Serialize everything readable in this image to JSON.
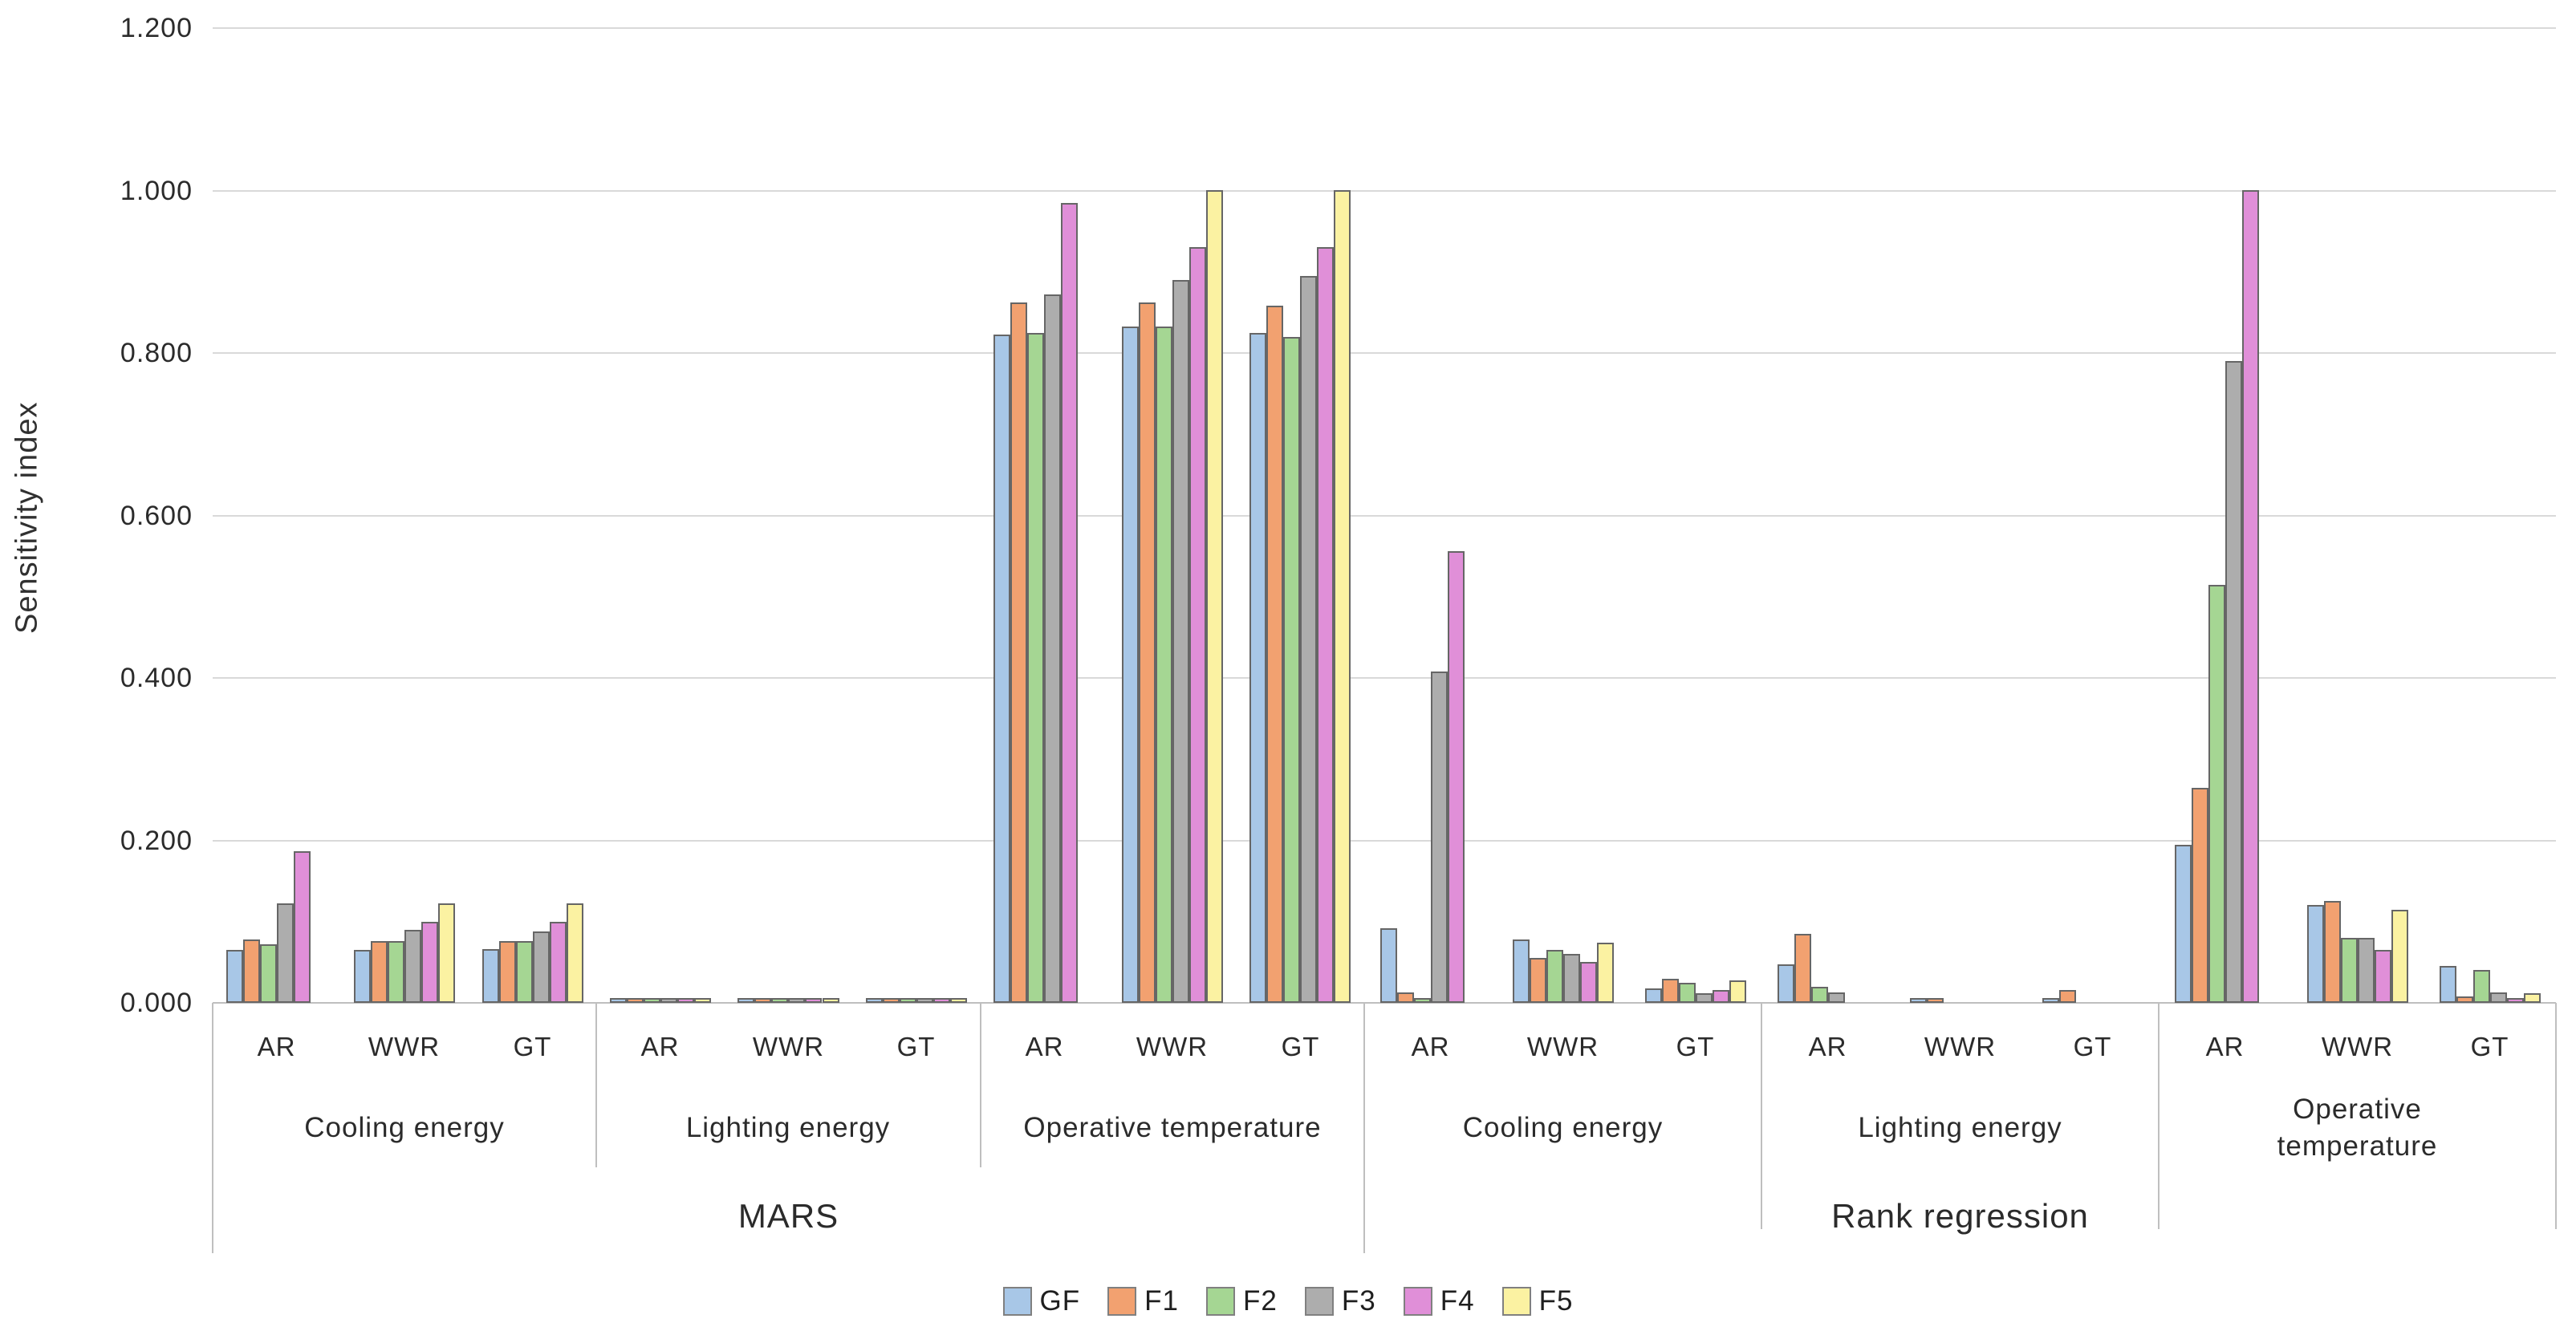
{
  "chart_data": {
    "type": "bar",
    "title": "",
    "ylabel": "Sensitivity index",
    "xlabel": "",
    "ylim": [
      0,
      1.2
    ],
    "ytick_labels": [
      "0.000",
      "0.200",
      "0.400",
      "0.600",
      "0.800",
      "1.000",
      "1.200"
    ],
    "grid": true,
    "legend_position": "bottom",
    "axis_colors": {
      "gridline": "#d9d9d9",
      "axis": "#bfbfbf",
      "bar_border": "#666666"
    },
    "series": [
      {
        "name": "GF",
        "color": "#a8c7e7"
      },
      {
        "name": "F1",
        "color": "#f2a170"
      },
      {
        "name": "F2",
        "color": "#a5d693"
      },
      {
        "name": "F3",
        "color": "#adadad"
      },
      {
        "name": "F4",
        "color": "#e08fd8"
      },
      {
        "name": "F5",
        "color": "#fbf2a2"
      }
    ],
    "methods": [
      {
        "label": "MARS",
        "sections": [
          {
            "label_lines": [
              "Cooling energy"
            ],
            "groups": [
              {
                "label": "AR",
                "values": [
                  0.065,
                  0.078,
                  0.072,
                  0.122,
                  0.187,
                  0
                ]
              },
              {
                "label": "WWR",
                "values": [
                  0.065,
                  0.076,
                  0.076,
                  0.09,
                  0.1,
                  0.122
                ]
              },
              {
                "label": "GT",
                "values": [
                  0.066,
                  0.076,
                  0.076,
                  0.088,
                  0.1,
                  0.122
                ]
              }
            ]
          },
          {
            "label_lines": [
              "Lighting energy"
            ],
            "groups": [
              {
                "label": "AR",
                "values": [
                  0.003,
                  0.004,
                  0.002,
                  0.004,
                  0.002,
                  0.004
                ]
              },
              {
                "label": "WWR",
                "values": [
                  0.003,
                  0.004,
                  0.002,
                  0.004,
                  0.002,
                  0.004
                ]
              },
              {
                "label": "GT",
                "values": [
                  0.003,
                  0.004,
                  0.002,
                  0.004,
                  0.002,
                  0.004
                ]
              }
            ]
          },
          {
            "label_lines": [
              "Operative temperature"
            ],
            "groups": [
              {
                "label": "AR",
                "values": [
                  0.823,
                  0.862,
                  0.825,
                  0.872,
                  0.985,
                  0
                ]
              },
              {
                "label": "WWR",
                "values": [
                  0.833,
                  0.862,
                  0.833,
                  0.89,
                  0.93,
                  1.0
                ]
              },
              {
                "label": "GT",
                "values": [
                  0.825,
                  0.858,
                  0.82,
                  0.895,
                  0.93,
                  1.0
                ]
              }
            ]
          }
        ]
      },
      {
        "label": "Rank regression",
        "sections": [
          {
            "label_lines": [
              "Cooling energy"
            ],
            "groups": [
              {
                "label": "AR",
                "values": [
                  0.092,
                  0.013,
                  0.003,
                  0.408,
                  0.556,
                  0
                ]
              },
              {
                "label": "WWR",
                "values": [
                  0.078,
                  0.055,
                  0.065,
                  0.06,
                  0.05,
                  0.074
                ]
              },
              {
                "label": "GT",
                "values": [
                  0.018,
                  0.03,
                  0.025,
                  0.012,
                  0.016,
                  0.028
                ]
              }
            ]
          },
          {
            "label_lines": [
              "Lighting energy"
            ],
            "groups": [
              {
                "label": "AR",
                "values": [
                  0.047,
                  0.085,
                  0.02,
                  0.013,
                  0,
                  0
                ]
              },
              {
                "label": "WWR",
                "values": [
                  0.004,
                  0.004,
                  0,
                  0,
                  0,
                  0
                ]
              },
              {
                "label": "GT",
                "values": [
                  0.004,
                  0.016,
                  0,
                  0,
                  0,
                  0
                ]
              }
            ]
          },
          {
            "label_lines": [
              "Operative",
              "temperature"
            ],
            "groups": [
              {
                "label": "AR",
                "values": [
                  0.195,
                  0.265,
                  0.515,
                  0.79,
                  1.0,
                  0
                ]
              },
              {
                "label": "WWR",
                "values": [
                  0.12,
                  0.125,
                  0.08,
                  0.08,
                  0.065,
                  0.115
                ]
              },
              {
                "label": "GT",
                "values": [
                  0.045,
                  0.008,
                  0.04,
                  0.013,
                  0.006,
                  0.012
                ]
              }
            ]
          }
        ]
      }
    ]
  }
}
